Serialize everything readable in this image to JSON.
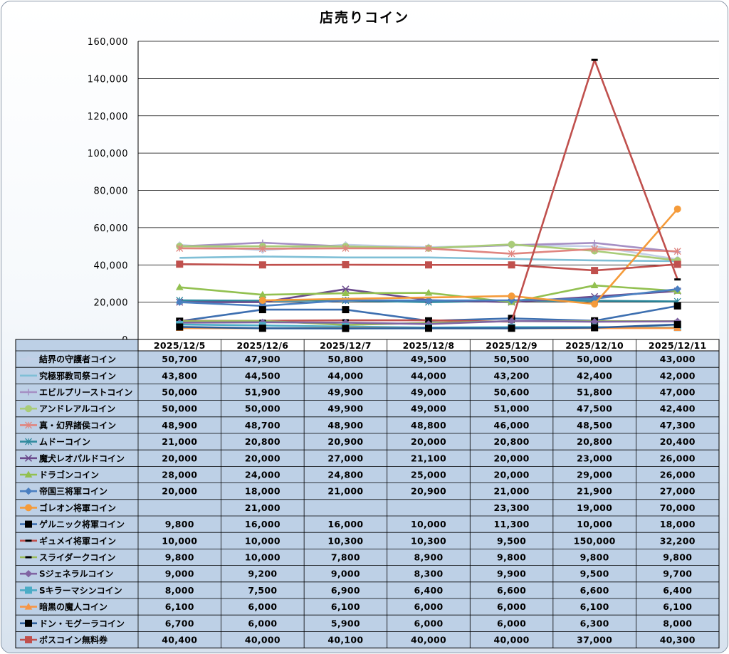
{
  "chart_data": {
    "type": "line",
    "title": "店売りコイン",
    "ylim": [
      0,
      160000
    ],
    "yticks": [
      "0",
      "20,000",
      "40,000",
      "60,000",
      "80,000",
      "100,000",
      "120,000",
      "140,000",
      "160,000"
    ],
    "grid": true,
    "legend": "data-table",
    "categories": [
      "2025/12/5",
      "2025/12/6",
      "2025/12/7",
      "2025/12/8",
      "2025/12/9",
      "2025/12/10",
      "2025/12/11"
    ],
    "series": [
      {
        "name": "結界の守護者コイン",
        "color": "#c3cfe6",
        "marker": "diamond",
        "values": [
          50700,
          47900,
          50800,
          49500,
          50500,
          50000,
          43000
        ]
      },
      {
        "name": "究極邪教司祭コイン",
        "color": "#7fbfd6",
        "marker": "none",
        "values": [
          43800,
          44500,
          44000,
          44000,
          43200,
          42400,
          42000
        ]
      },
      {
        "name": "エビルプリーストコイン",
        "color": "#a58fc4",
        "marker": "plus",
        "values": [
          50000,
          51900,
          49900,
          49000,
          50600,
          51800,
          47000
        ]
      },
      {
        "name": "アンドレアルコイン",
        "color": "#a9cc78",
        "marker": "circle",
        "values": [
          50000,
          50000,
          49900,
          49000,
          51000,
          47500,
          42400
        ]
      },
      {
        "name": "真・幻界諸侯コイン",
        "color": "#e0857f",
        "marker": "star",
        "values": [
          48900,
          48700,
          48900,
          48800,
          46000,
          48500,
          47300
        ]
      },
      {
        "name": "ムドーコイン",
        "color": "#2e8a9e",
        "marker": "star",
        "values": [
          21000,
          20800,
          20900,
          20000,
          20800,
          20800,
          20400
        ]
      },
      {
        "name": "魔犬レオパルドコイン",
        "color": "#6a4a8c",
        "marker": "x",
        "values": [
          20000,
          20000,
          27000,
          21100,
          20000,
          23000,
          26000
        ]
      },
      {
        "name": "ドラゴンコイン",
        "color": "#92c050",
        "marker": "triangle",
        "values": [
          28000,
          24000,
          24800,
          25000,
          20000,
          29000,
          26000
        ]
      },
      {
        "name": "帝国三将軍コイン",
        "color": "#4a7fc1",
        "marker": "diamond",
        "values": [
          20000,
          18000,
          21000,
          20900,
          21000,
          21900,
          27000
        ]
      },
      {
        "name": "ゴレオン将軍コイン",
        "color": "#f59b3a",
        "marker": "circle",
        "values": [
          null,
          21000,
          null,
          null,
          23300,
          19000,
          70000
        ]
      },
      {
        "name": "ゲルニック将軍コイン",
        "color": "#3d6fb0",
        "marker": "square-black",
        "values": [
          9800,
          16000,
          16000,
          10000,
          11300,
          10000,
          18000
        ]
      },
      {
        "name": "ギュメイ将軍コイン",
        "color": "#c0504d",
        "marker": "dash",
        "values": [
          10000,
          10000,
          10300,
          10300,
          9500,
          150000,
          32200
        ]
      },
      {
        "name": "スライダークコイン",
        "color": "#9bbb59",
        "marker": "dash",
        "values": [
          9800,
          10000,
          7800,
          8900,
          9800,
          9800,
          9800
        ]
      },
      {
        "name": "Sジェネラルコイン",
        "color": "#8064a2",
        "marker": "diamond",
        "values": [
          9000,
          9200,
          9000,
          8300,
          9900,
          9500,
          9700
        ]
      },
      {
        "name": "Sキラーマシンコイン",
        "color": "#4bacc6",
        "marker": "square",
        "values": [
          8000,
          7500,
          6900,
          6400,
          6600,
          6600,
          6400
        ]
      },
      {
        "name": "暗黒の魔人コイン",
        "color": "#f79646",
        "marker": "triangle",
        "values": [
          6100,
          6000,
          6100,
          6000,
          6000,
          6100,
          6100
        ]
      },
      {
        "name": "ドン・モグーラコイン",
        "color": "#2c5d99",
        "marker": "square-black",
        "values": [
          6700,
          6000,
          5900,
          6000,
          6000,
          6300,
          8000
        ]
      },
      {
        "name": "ボスコイン無料券",
        "color": "#c0504d",
        "marker": "square",
        "values": [
          40400,
          40000,
          40100,
          40000,
          40000,
          37000,
          40300
        ]
      }
    ]
  },
  "table": {
    "values_text": [
      [
        "50,700",
        "47,900",
        "50,800",
        "49,500",
        "50,500",
        "50,000",
        "43,000"
      ],
      [
        "43,800",
        "44,500",
        "44,000",
        "44,000",
        "43,200",
        "42,400",
        "42,000"
      ],
      [
        "50,000",
        "51,900",
        "49,900",
        "49,000",
        "50,600",
        "51,800",
        "47,000"
      ],
      [
        "50,000",
        "50,000",
        "49,900",
        "49,000",
        "51,000",
        "47,500",
        "42,400"
      ],
      [
        "48,900",
        "48,700",
        "48,900",
        "48,800",
        "46,000",
        "48,500",
        "47,300"
      ],
      [
        "21,000",
        "20,800",
        "20,900",
        "20,000",
        "20,800",
        "20,800",
        "20,400"
      ],
      [
        "20,000",
        "20,000",
        "27,000",
        "21,100",
        "20,000",
        "23,000",
        "26,000"
      ],
      [
        "28,000",
        "24,000",
        "24,800",
        "25,000",
        "20,000",
        "29,000",
        "26,000"
      ],
      [
        "20,000",
        "18,000",
        "21,000",
        "20,900",
        "21,000",
        "21,900",
        "27,000"
      ],
      [
        "",
        "21,000",
        "",
        "",
        "23,300",
        "19,000",
        "70,000"
      ],
      [
        "9,800",
        "16,000",
        "16,000",
        "10,000",
        "11,300",
        "10,000",
        "18,000"
      ],
      [
        "10,000",
        "10,000",
        "10,300",
        "10,300",
        "9,500",
        "150,000",
        "32,200"
      ],
      [
        "9,800",
        "10,000",
        "7,800",
        "8,900",
        "9,800",
        "9,800",
        "9,800"
      ],
      [
        "9,000",
        "9,200",
        "9,000",
        "8,300",
        "9,900",
        "9,500",
        "9,700"
      ],
      [
        "8,000",
        "7,500",
        "6,900",
        "6,400",
        "6,600",
        "6,600",
        "6,400"
      ],
      [
        "6,100",
        "6,000",
        "6,100",
        "6,000",
        "6,000",
        "6,100",
        "6,100"
      ],
      [
        "6,700",
        "6,000",
        "5,900",
        "6,000",
        "6,000",
        "6,300",
        "8,000"
      ],
      [
        "40,400",
        "40,000",
        "40,100",
        "40,000",
        "40,000",
        "37,000",
        "40,300"
      ]
    ]
  }
}
